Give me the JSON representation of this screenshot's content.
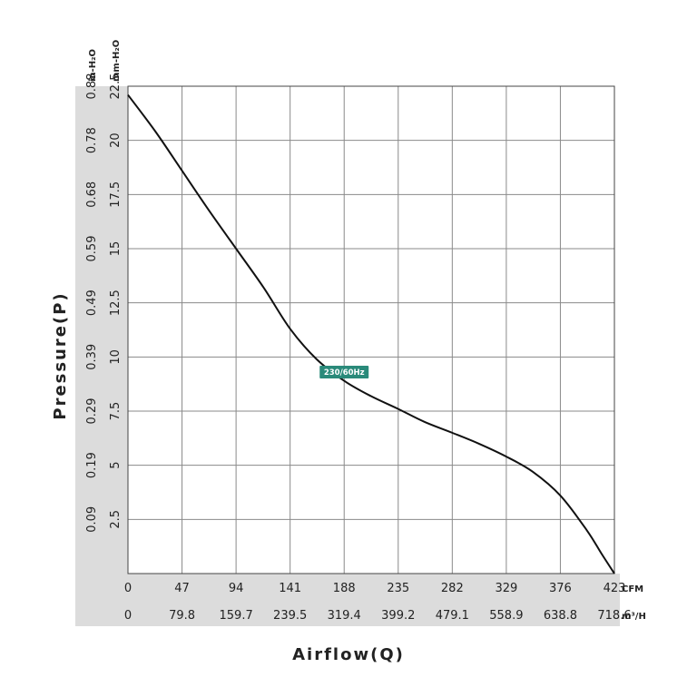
{
  "chart_data": {
    "type": "line",
    "x_units": {
      "primary": "CFM",
      "secondary": "m³/H"
    },
    "y_units": {
      "primary": "mm-H₂O",
      "secondary": "in-H₂O"
    },
    "x_ticks_cfm": [
      0,
      47,
      94,
      141,
      188,
      235,
      282,
      329,
      376,
      423
    ],
    "x_ticks_m3h": [
      "0",
      "79.8",
      "159.7",
      "239.5",
      "319.4",
      "399.2",
      "479.1",
      "558.9",
      "638.8",
      "718.6"
    ],
    "y_ticks_mm": [
      "2.5",
      "5",
      "7.5",
      "10",
      "12.5",
      "15",
      "17.5",
      "20",
      "22.5"
    ],
    "y_ticks_in": [
      "0.09",
      "0.19",
      "0.29",
      "0.39",
      "0.49",
      "0.59",
      "0.68",
      "0.78",
      "0.88"
    ],
    "xlim": [
      0,
      423
    ],
    "ylim": [
      0,
      22.5
    ],
    "xlabel": "Airflow(Q)",
    "ylabel": "Pressure(P)",
    "grid": true,
    "series": [
      {
        "name": "230/60Hz",
        "color": "#2a8a7a",
        "x": [
          0,
          24,
          47,
          70,
          94,
          118,
          141,
          164,
          188,
          211,
          235,
          258,
          282,
          305,
          329,
          352,
          376,
          399,
          412,
          423
        ],
        "y": [
          22.1,
          20.4,
          18.6,
          16.8,
          15.0,
          13.2,
          11.3,
          9.9,
          8.9,
          8.2,
          7.6,
          7.0,
          6.5,
          6.0,
          5.4,
          4.7,
          3.6,
          2.0,
          0.9,
          0.0
        ]
      }
    ],
    "annotation": {
      "text": "230/60Hz",
      "x": 188,
      "y": 9.3
    }
  }
}
